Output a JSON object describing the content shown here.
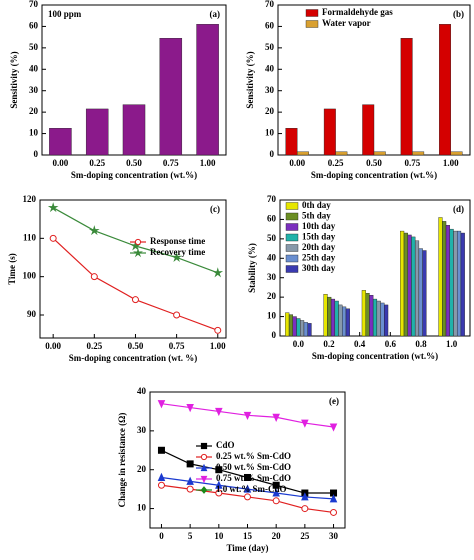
{
  "chart_data": [
    {
      "type": "bar",
      "panel_label": "(a)",
      "annotation": "100 ppm",
      "categories": [
        "0.00",
        "0.25",
        "0.50",
        "0.75",
        "1.00"
      ],
      "values": [
        12.5,
        21.5,
        23.5,
        54.5,
        61
      ],
      "color": "#8b1a8b",
      "ylim": [
        0,
        70
      ],
      "yticks": [
        0,
        10,
        20,
        30,
        40,
        50,
        60,
        70
      ],
      "xlabel": "Sm-doping concentration (wt.%)",
      "ylabel": "Sensitivity (%)"
    },
    {
      "type": "bar",
      "panel_label": "(b)",
      "categories": [
        "0.00",
        "0.25",
        "0.50",
        "0.75",
        "1.00"
      ],
      "series": [
        {
          "name": "Formaldehyde gas",
          "color": "#d40000",
          "values": [
            12.5,
            21.5,
            23.5,
            54.5,
            61
          ]
        },
        {
          "name": "Water vapor",
          "color": "#d9a030",
          "values": [
            1.5,
            1.5,
            1.5,
            1.5,
            1.5
          ]
        }
      ],
      "ylim": [
        0,
        70
      ],
      "yticks": [
        0,
        10,
        20,
        30,
        40,
        50,
        60,
        70
      ],
      "xlabel": "Sm-doping concentration (wt.%)",
      "ylabel": "Sensitivity (%)",
      "legend": "upper left"
    },
    {
      "type": "line",
      "panel_label": "(c)",
      "x": [
        0,
        0.25,
        0.5,
        0.75,
        1.0
      ],
      "series": [
        {
          "name": "Response time",
          "color": "#e02020",
          "marker": "circle",
          "values": [
            110,
            100,
            94,
            90,
            86
          ]
        },
        {
          "name": "Recovery time",
          "color": "#3a8a3a",
          "marker": "star",
          "values": [
            118,
            112,
            108,
            105,
            101
          ]
        }
      ],
      "xlim": [
        -0.08,
        1.05
      ],
      "xticks": [
        {
          "value": 0,
          "label": "0.00"
        },
        {
          "value": 0.25,
          "label": "0.25"
        },
        {
          "value": 0.5,
          "label": "0.50"
        },
        {
          "value": 0.75,
          "label": "0.75"
        },
        {
          "value": 1.0,
          "label": "1.00"
        }
      ],
      "ylim": [
        84,
        120
      ],
      "yticks": [
        90,
        100,
        110,
        120
      ],
      "xlabel": "Sm-doping concentration (wt. %)",
      "ylabel": "Time (s)",
      "legend": "upper right"
    },
    {
      "type": "bar",
      "panel_label": "(d)",
      "x": [
        0,
        0.25,
        0.5,
        0.75,
        1.0
      ],
      "series": [
        {
          "name": "0th day",
          "color": "#e6e600",
          "values": [
            12,
            21.5,
            23.5,
            54,
            61
          ]
        },
        {
          "name": "5th day",
          "color": "#6b8e23",
          "values": [
            11,
            20,
            22,
            53,
            59
          ]
        },
        {
          "name": "10th day",
          "color": "#7b2fbe",
          "values": [
            10,
            19,
            21,
            52,
            57
          ]
        },
        {
          "name": "15th day",
          "color": "#20b2aa",
          "values": [
            9,
            18,
            19,
            51,
            55
          ]
        },
        {
          "name": "20th day",
          "color": "#8899aa",
          "values": [
            8,
            16,
            18,
            49,
            54
          ]
        },
        {
          "name": "25th day",
          "color": "#6a8fd0",
          "values": [
            7,
            15,
            17,
            45,
            54
          ]
        },
        {
          "name": "30th day",
          "color": "#3a3ab0",
          "values": [
            6.5,
            14,
            16,
            44,
            53
          ]
        }
      ],
      "xlim": [
        -0.12,
        1.12
      ],
      "xticks": [
        {
          "value": 0,
          "label": "0.0"
        },
        {
          "value": 0.2,
          "label": "0.2"
        },
        {
          "value": 0.4,
          "label": "0.4"
        },
        {
          "value": 0.6,
          "label": "0.6"
        },
        {
          "value": 0.8,
          "label": "0.8"
        },
        {
          "value": 1.0,
          "label": "1.0"
        }
      ],
      "ylim": [
        0,
        70
      ],
      "yticks": [
        0,
        10,
        20,
        30,
        40,
        50,
        60,
        70
      ],
      "xlabel": "Sm-doping concentration (wt.%)",
      "ylabel": "Stability (%)",
      "legend": "upper left"
    },
    {
      "type": "line",
      "panel_label": "(e)",
      "x": [
        0,
        5,
        10,
        15,
        20,
        25,
        30
      ],
      "series": [
        {
          "name": "CdO",
          "color": "#000000",
          "marker": "square",
          "values": [
            25,
            21.5,
            20,
            18,
            16,
            14,
            14
          ]
        },
        {
          "name": "0.25 wt.% Sm-CdO",
          "color": "#e02020",
          "marker": "circle",
          "values": [
            16,
            15,
            14,
            13,
            12,
            10,
            9
          ]
        },
        {
          "name": "0.50 wt.% Sm-CdO",
          "color": "#1a3ad0",
          "marker": "triangle-up",
          "values": [
            18,
            17,
            16,
            15,
            14,
            13,
            12.5
          ]
        },
        {
          "name": "0.75 wt.% Sm-CdO",
          "color": "#e020e0",
          "marker": "triangle-down",
          "values": [
            37,
            36,
            35,
            34,
            33.5,
            32,
            31
          ]
        },
        {
          "name": "1.0 wt.% Sm-CdO",
          "color": "#1a8a1a",
          "marker": "diamond",
          "values": [
            null,
            null,
            null,
            null,
            null,
            null,
            null
          ]
        }
      ],
      "xlim": [
        -2,
        32
      ],
      "xticks": [
        0,
        5,
        10,
        15,
        20,
        25,
        30
      ],
      "ylim": [
        5,
        40
      ],
      "yticks": [
        10,
        20,
        30,
        40
      ],
      "xlabel": "Time (day)",
      "ylabel": "Change in resistance (Ω)",
      "legend": "center left"
    }
  ]
}
